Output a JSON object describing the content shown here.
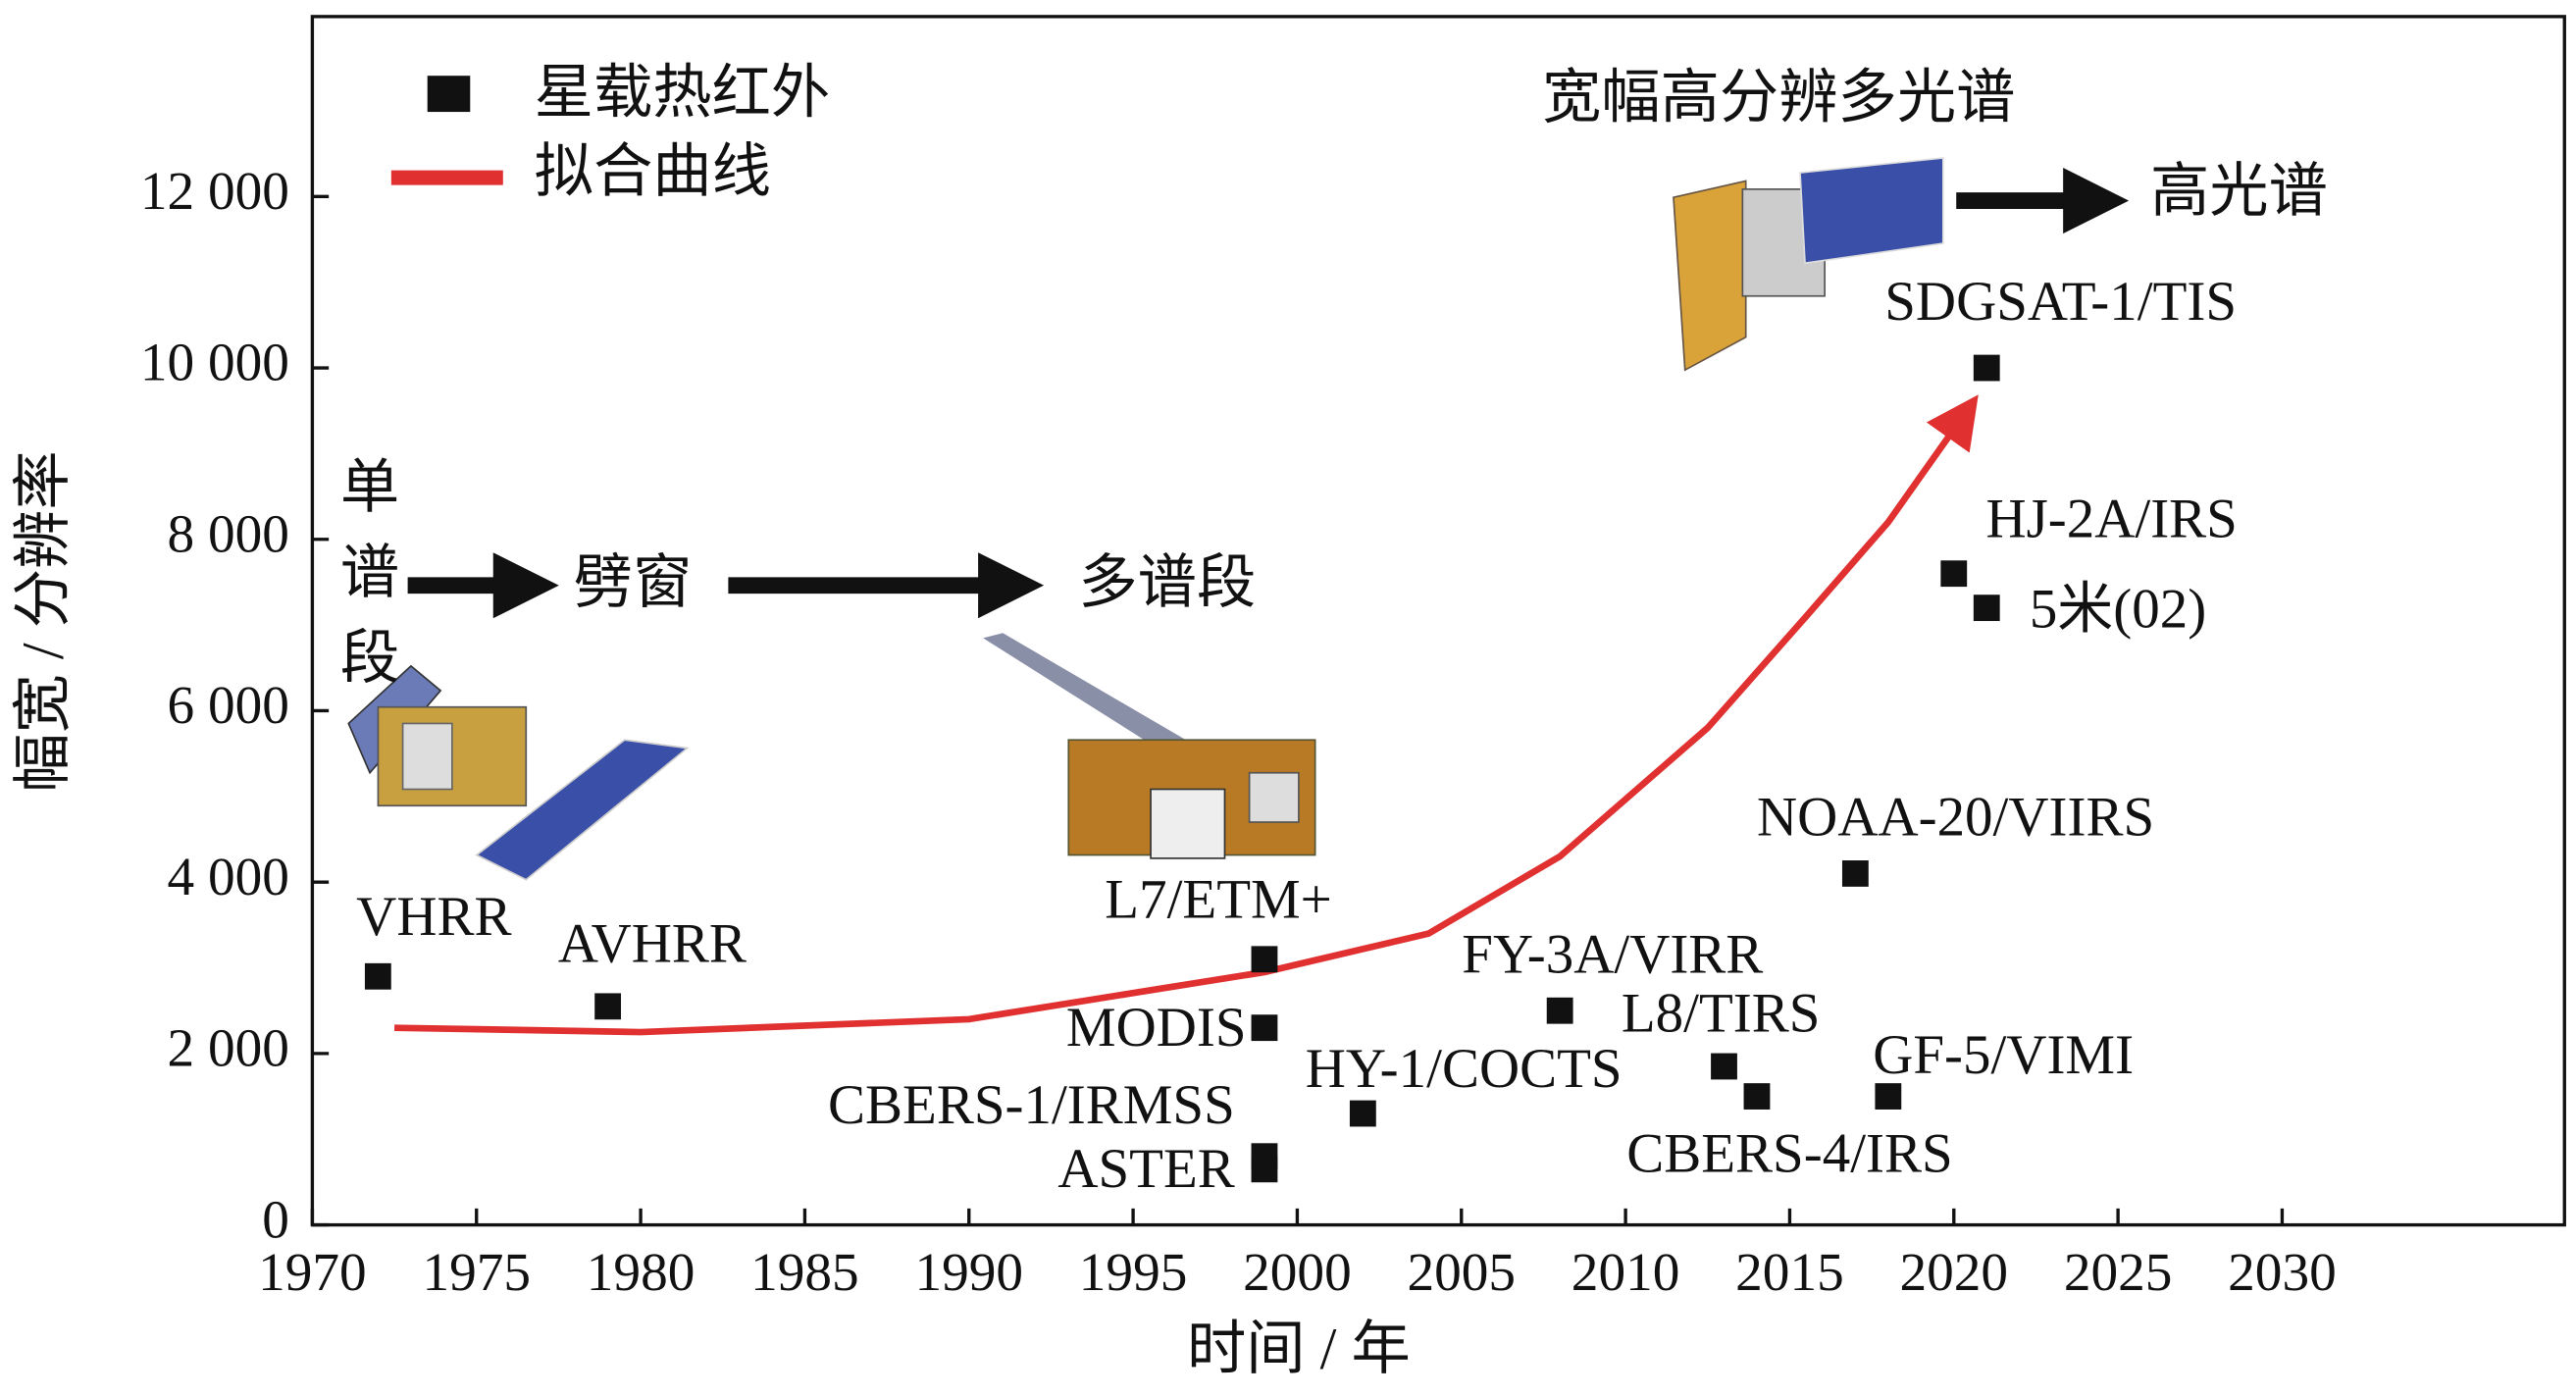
{
  "chart_data": {
    "type": "scatter",
    "x_label": "时间 / 年",
    "y_label": "幅宽 / 分辨率",
    "xlim": [
      1970,
      2038.6
    ],
    "ylim": [
      0,
      14100
    ],
    "xticks": [
      1970,
      1975,
      1980,
      1985,
      1990,
      1995,
      2000,
      2005,
      2010,
      2015,
      2020,
      2025,
      2030
    ],
    "yticks": [
      0,
      {
        "value": 2000,
        "label": "2 000"
      },
      {
        "value": 4000,
        "label": "4 000"
      },
      {
        "value": 6000,
        "label": "6 000"
      },
      {
        "value": 8000,
        "label": "8 000"
      },
      {
        "value": 10000,
        "label": "10 000"
      },
      {
        "value": 12000,
        "label": "12 000"
      }
    ],
    "legend": "upper left",
    "series": [
      {
        "name": "星载热红外",
        "color": "#111111",
        "x": [
          1972,
          1979,
          1999,
          1999,
          1999,
          1999,
          2002,
          2008,
          2013,
          2014,
          2018,
          2017,
          2020,
          2021,
          2021
        ],
        "values": [
          2900,
          2550,
          3100,
          2300,
          800,
          650,
          1300,
          2500,
          1850,
          1500,
          1500,
          4100,
          7600,
          7200,
          10000
        ],
        "point_labels": [
          "VHRR",
          "AVHRR",
          "L7/ETM+",
          "MODIS",
          "CBERS-1/IRMSS",
          "ASTER",
          "HY-1/COCTS",
          "FY-3A/VIRR",
          "L8/TIRS",
          "CBERS-4/IRS",
          "GF-5/VIMI",
          "NOAA-20/VIIRS",
          "HJ-2A/IRS",
          "5米(02)",
          "SDGSAT-1/TIS"
        ]
      },
      {
        "name": "拟合曲线",
        "color": "#e03030",
        "x": [
          1972.5,
          1980,
          1990,
          1999,
          2004,
          2008,
          2012.5,
          2015.5,
          2018,
          2020.4
        ],
        "values": [
          2300,
          2250,
          2400,
          2950,
          3400,
          4300,
          5800,
          7100,
          8200,
          9500
        ]
      }
    ],
    "annotations": [
      "单谱段",
      "劈窗",
      "多谱段",
      "宽幅高分辨多光谱",
      "高光谱"
    ]
  }
}
